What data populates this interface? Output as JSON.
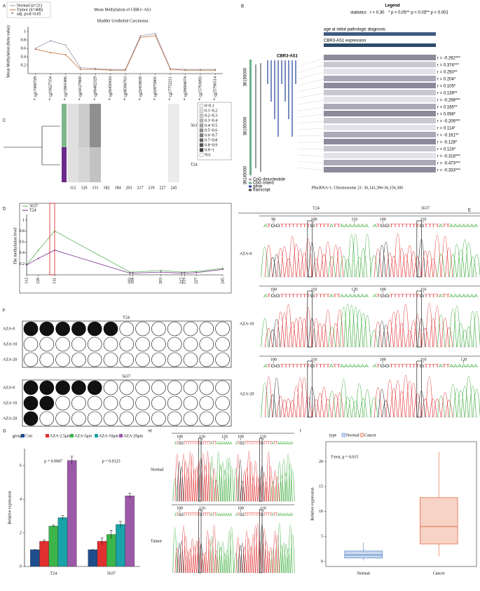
{
  "panel_labels": [
    "A",
    "B",
    "C",
    "D",
    "E",
    "F",
    "G",
    "H",
    "I"
  ],
  "chart_data": [
    {
      "type": "line",
      "title": "Mean Methylation of CBR3−AS1",
      "subtitle": "Bladder Urothelial Carcinoma",
      "ylabel": "Mean Methylation (beta value)",
      "categories": [
        "* cg17499729",
        "* cg10627354",
        "* cg15801486",
        "* cg24127869",
        "* cg00482329",
        "* cg26450416",
        "* cg08306763",
        "* cg22418839",
        "* cg02875805",
        "* cg17752211",
        "* cg20694074",
        "* cg15793093",
        "* cg25796514"
      ],
      "label_colors": [
        "#000000",
        "#000000",
        "#000000",
        "#000000",
        "#3f9a3a",
        "#3f9a3a",
        "#3f9a3a",
        "#000000",
        "#000000",
        "#3f9a3a",
        "#3f9a3a",
        "#3f9a3a",
        "#3f9a3a"
      ],
      "series": [
        {
          "name": "Normal (n=21)",
          "color": "#9a9ab2",
          "values": [
            0.6,
            0.78,
            0.68,
            0.14,
            0.12,
            0.1,
            0.1,
            0.9,
            0.95,
            0.12,
            0.1,
            0.1,
            0.1
          ]
        },
        {
          "name": "Tumor (n=408)",
          "color": "#c0703a",
          "values": [
            0.58,
            0.5,
            0.45,
            0.1,
            0.1,
            0.08,
            0.08,
            0.86,
            0.9,
            0.1,
            0.08,
            0.08,
            0.08
          ]
        }
      ],
      "legend_note": "adj. pval<0.05",
      "ylim": [
        0,
        1.05
      ],
      "yticks": [
        0.2,
        0.4,
        0.6,
        0.8,
        1
      ]
    },
    {
      "type": "line",
      "ylabel": "The methylation level",
      "x": [
        112,
        120,
        131,
        182,
        184,
        203,
        217,
        219,
        227,
        245
      ],
      "xlim": [
        112,
        245
      ],
      "xticks": [
        112,
        120,
        131,
        182,
        184,
        203,
        217,
        219,
        227,
        245
      ],
      "series": [
        {
          "name": "5637",
          "color": "#5fb55f",
          "values": [
            0.18,
            0.45,
            0.8,
            0.05,
            0.05,
            0.08,
            0.05,
            0.05,
            0.06,
            0.12
          ]
        },
        {
          "name": "T24",
          "color": "#7b2d8e",
          "values": [
            0.18,
            0.3,
            0.45,
            0.03,
            0.03,
            0.05,
            0.03,
            0.03,
            0.04,
            0.1
          ]
        }
      ],
      "ylim": [
        0,
        1.05
      ],
      "yticks": [
        0.2,
        0.4,
        0.6,
        0.8,
        1
      ]
    },
    {
      "type": "bar",
      "legend_title": "group",
      "ylabel": "Relative expression",
      "categories": [
        "T24",
        "5637"
      ],
      "series": [
        {
          "name": "Con",
          "color": "#1f4e8c",
          "values": [
            1,
            1
          ],
          "errors": [
            0,
            0
          ]
        },
        {
          "name": "AZA-2.5μm",
          "color": "#e03030",
          "values": [
            1.5,
            1.5
          ],
          "errors": [
            0.08,
            0.2
          ]
        },
        {
          "name": "AZA-5μm",
          "color": "#3cb54a",
          "values": [
            2.4,
            1.9
          ],
          "errors": [
            0.06,
            0.25
          ]
        },
        {
          "name": "AZA-10μm",
          "color": "#1aa3a8",
          "values": [
            2.9,
            2.5
          ],
          "errors": [
            0.12,
            0.18
          ]
        },
        {
          "name": "AZA-20μm",
          "color": "#9b59a8",
          "values": [
            6.3,
            4.2
          ],
          "errors": [
            0.25,
            0.15
          ]
        }
      ],
      "annotations": [
        "p = 0.0087",
        "p = 0.0123"
      ],
      "ylim": [
        0,
        7
      ],
      "yticks": [
        0,
        2,
        4,
        6
      ]
    },
    {
      "type": "box",
      "legend_title": "type",
      "ylabel": "Relative expression",
      "categories": [
        "Normal",
        "Cancer"
      ],
      "colors": [
        "#4a7fc0",
        "#e0603a"
      ],
      "fills": [
        "#c9d8ee",
        "#f7d3c6"
      ],
      "boxes": [
        {
          "min": 0.2,
          "q1": 0.7,
          "median": 1.3,
          "q3": 2.1,
          "max": 3.8
        },
        {
          "min": 1,
          "q1": 3.5,
          "median": 7,
          "q3": 12.8,
          "max": 22
        }
      ],
      "annotation": "T-test, p = 0.015",
      "ylim": [
        -1,
        24
      ],
      "yticks": [
        0,
        5,
        10,
        15,
        20
      ]
    }
  ],
  "genome": {
    "legend_title": "Legend",
    "stats_label": "statistics",
    "stat_keys": [
      "r < 0.30",
      "* p < 0.05",
      "** p < 0.01",
      "*** p < 0.001"
    ],
    "tracks": [
      "age at initial pathologic diagnosis",
      "CBR3-AS1 expression"
    ],
    "gene": "CBR3-AS1",
    "coords": [
      "36155000",
      "36150000",
      "36145000"
    ],
    "r_values": [
      "r = -0.292***",
      "r = 0.374***",
      "r = 0.250**",
      "r = 0.204*",
      "r = 0.105*",
      "r = 0.139**",
      "r = -0.298***",
      "r = 0.165**",
      "r = 0.098*",
      "r = -0.206***",
      "r = 0.114*",
      "r = -0.161**",
      "r = -0.128*",
      "r = 0.124*",
      "r = -0.318***",
      "r = -0.473***",
      "r = -0.333***"
    ],
    "caption": "PlncRNA-1: Chromosome 21: 36,141,396-36,156,306",
    "feature_legend": [
      "CpG dinucleotide",
      "CpG island",
      "gene",
      "transcript"
    ]
  },
  "heatmap": {
    "columns": [
      "112",
      "120",
      "131",
      "182",
      "184",
      "203",
      "217",
      "219",
      "227",
      "245"
    ],
    "rows": [
      "5637",
      "T24"
    ],
    "values": [
      [
        0.15,
        0.25,
        0.55,
        0,
        0,
        0,
        0,
        0,
        0,
        0.1
      ],
      [
        0.15,
        0.2,
        0.3,
        0,
        0,
        0,
        0,
        0,
        0,
        0.1
      ]
    ],
    "legend": [
      "0~0.1",
      "0.1~0.2",
      "0.2~0.3",
      "0.3~0.4",
      "0.4~0.5",
      "0.5~0.6",
      "0.6~0.7",
      "0.7~0.8",
      "0.8~0.9",
      "0.9~1",
      "NA"
    ]
  },
  "bisulfite": {
    "blocks": [
      {
        "title": "T24",
        "rows": [
          {
            "label": "AZA-0",
            "sites": [
              1,
              1,
              1,
              1,
              1,
              1,
              0,
              0,
              0,
              0,
              0,
              0,
              0
            ]
          },
          {
            "label": "AZA-10",
            "sites": [
              0,
              0,
              0,
              0,
              0,
              0,
              0,
              0,
              0,
              0,
              0,
              0,
              0
            ]
          },
          {
            "label": "AZA-20",
            "sites": [
              0,
              0,
              0,
              0,
              0,
              0,
              0,
              0,
              0,
              0,
              0,
              0,
              0
            ]
          }
        ]
      },
      {
        "title": "5637",
        "rows": [
          {
            "label": "AZA-0",
            "sites": [
              1,
              1,
              1,
              1,
              1,
              0,
              0,
              0,
              0,
              0,
              0,
              0,
              0
            ]
          },
          {
            "label": "AZA-10",
            "sites": [
              1,
              1,
              0,
              0,
              0,
              0,
              0,
              0,
              0,
              0,
              0,
              0,
              0
            ]
          },
          {
            "label": "AZA-20",
            "sites": [
              1,
              0,
              0,
              0,
              0,
              0,
              0,
              0,
              0,
              0,
              0,
              0,
              0
            ]
          }
        ]
      }
    ]
  },
  "sequencing": {
    "sequence": "ATGGTTTTTTTTGTTTTATTAAAAAAA",
    "E": {
      "columns": [
        "T24",
        "5637"
      ],
      "rows": [
        "AZA-0",
        "AZA-10",
        "AZA-20"
      ],
      "ticks": [
        [
          [
            90,
            100,
            110
          ],
          [
            100,
            110
          ]
        ],
        [
          [
            100,
            110,
            120
          ],
          [
            100,
            110
          ]
        ],
        [
          [
            100,
            110
          ],
          [
            100,
            110,
            120
          ]
        ]
      ]
    },
    "H": {
      "rows": [
        "Normal",
        "Tumor"
      ],
      "ticks": [
        [
          [
            100,
            110,
            120
          ],
          [
            100,
            110
          ]
        ],
        [
          [
            100,
            110
          ],
          [
            100,
            110
          ]
        ]
      ]
    }
  }
}
